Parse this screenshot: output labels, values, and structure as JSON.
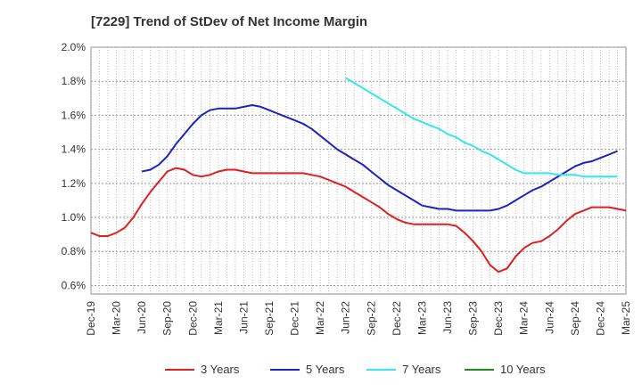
{
  "chart_data": {
    "type": "line",
    "title": "[7229]  Trend of StDev of Net Income Margin",
    "xlabel": "",
    "ylabel": "",
    "x_ticks": [
      "Dec-19",
      "Mar-20",
      "Jun-20",
      "Sep-20",
      "Dec-20",
      "Mar-21",
      "Jun-21",
      "Sep-21",
      "Dec-21",
      "Mar-22",
      "Jun-22",
      "Sep-22",
      "Dec-22",
      "Mar-23",
      "Jun-23",
      "Sep-23",
      "Dec-23",
      "Mar-24",
      "Jun-24",
      "Sep-24",
      "Dec-24",
      "Mar-25"
    ],
    "y_ticks": [
      "0.6%",
      "0.8%",
      "1.0%",
      "1.2%",
      "1.4%",
      "1.6%",
      "1.8%",
      "2.0%"
    ],
    "ylim": [
      0.55,
      2.0
    ],
    "grid": true,
    "legend_position": "bottom",
    "series": [
      {
        "name": "3 Years",
        "color": "#dd1f1f",
        "start_month": 0,
        "values": [
          0.91,
          0.89,
          0.89,
          0.91,
          0.94,
          1.0,
          1.08,
          1.15,
          1.21,
          1.27,
          1.29,
          1.28,
          1.25,
          1.24,
          1.25,
          1.27,
          1.28,
          1.28,
          1.27,
          1.26,
          1.26,
          1.26,
          1.26,
          1.26,
          1.26,
          1.26,
          1.25,
          1.24,
          1.22,
          1.2,
          1.18,
          1.15,
          1.12,
          1.09,
          1.06,
          1.02,
          0.99,
          0.97,
          0.96,
          0.96,
          0.96,
          0.96,
          0.96,
          0.95,
          0.91,
          0.86,
          0.8,
          0.72,
          0.68,
          0.7,
          0.77,
          0.82,
          0.85,
          0.86,
          0.89,
          0.93,
          0.98,
          1.02,
          1.04,
          1.06,
          1.06,
          1.06,
          1.05,
          1.04
        ]
      },
      {
        "name": "5 Years",
        "color": "#1a23c2",
        "start_month": 6,
        "values": [
          1.27,
          1.28,
          1.31,
          1.36,
          1.43,
          1.49,
          1.55,
          1.6,
          1.63,
          1.64,
          1.64,
          1.64,
          1.65,
          1.66,
          1.65,
          1.63,
          1.61,
          1.59,
          1.57,
          1.55,
          1.52,
          1.48,
          1.44,
          1.4,
          1.37,
          1.34,
          1.31,
          1.27,
          1.23,
          1.19,
          1.16,
          1.13,
          1.1,
          1.07,
          1.06,
          1.05,
          1.05,
          1.04,
          1.04,
          1.04,
          1.04,
          1.04,
          1.05,
          1.07,
          1.1,
          1.13,
          1.16,
          1.18,
          1.21,
          1.24,
          1.27,
          1.3,
          1.32,
          1.33,
          1.35,
          1.37,
          1.39
        ]
      },
      {
        "name": "7 Years",
        "color": "#33e6ee",
        "start_month": 30,
        "values": [
          1.82,
          1.79,
          1.76,
          1.73,
          1.7,
          1.67,
          1.64,
          1.61,
          1.58,
          1.56,
          1.54,
          1.52,
          1.49,
          1.47,
          1.44,
          1.42,
          1.39,
          1.37,
          1.34,
          1.31,
          1.28,
          1.26,
          1.26,
          1.26,
          1.26,
          1.25,
          1.25,
          1.25,
          1.24,
          1.24,
          1.24,
          1.24,
          1.24
        ]
      },
      {
        "name": "10 Years",
        "color": "#1e8a1e",
        "start_month": 0,
        "values": []
      }
    ]
  }
}
